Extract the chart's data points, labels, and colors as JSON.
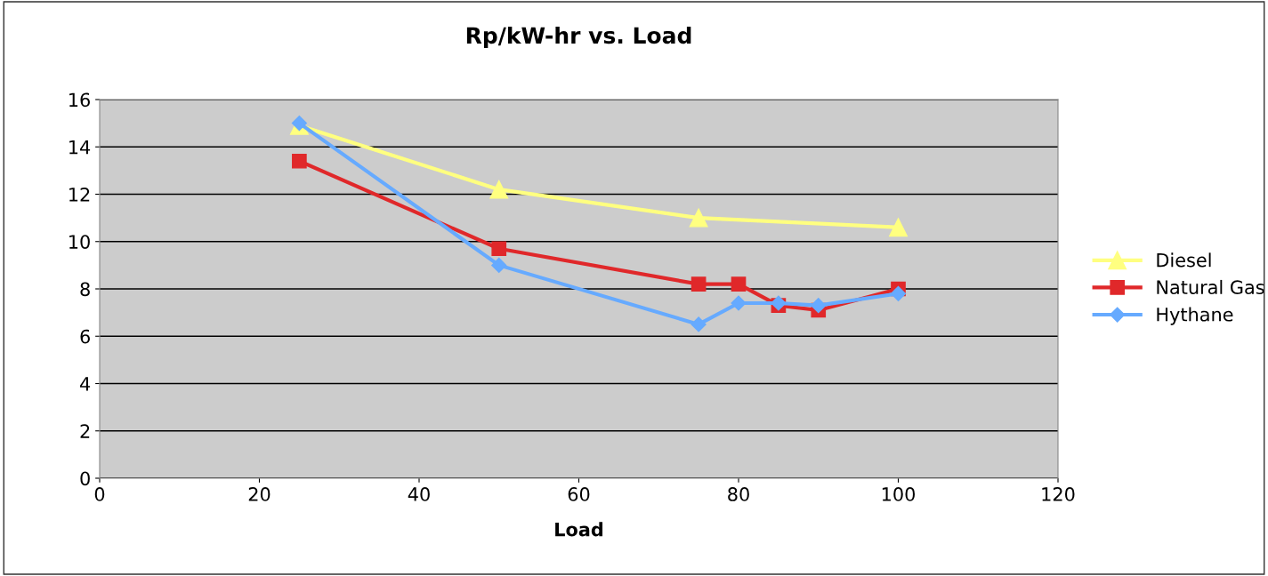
{
  "chart_data": {
    "type": "line",
    "title": "Rp/kW-hr vs. Load",
    "xlabel": "Load",
    "xlim": [
      0,
      120
    ],
    "xticks": [
      0,
      20,
      40,
      60,
      80,
      100,
      120
    ],
    "ylim": [
      0,
      16
    ],
    "yticks": [
      0,
      2,
      4,
      6,
      8,
      10,
      12,
      14,
      16
    ],
    "grid": "y",
    "legend": "right",
    "line_style": "solid",
    "series": [
      {
        "name": "Diesel",
        "color": "#ffff80",
        "marker": "triangle",
        "x": [
          25,
          50,
          75,
          100
        ],
        "values": [
          14.9,
          12.2,
          11.0,
          10.6
        ]
      },
      {
        "name": "Natural Gas",
        "color": "#e0282a",
        "marker": "square",
        "x": [
          25,
          50,
          75,
          80,
          85,
          90,
          100
        ],
        "values": [
          13.4,
          9.7,
          8.2,
          8.2,
          7.3,
          7.1,
          8.0
        ]
      },
      {
        "name": "Hythane",
        "color": "#66aaff",
        "marker": "diamond",
        "x": [
          25,
          50,
          75,
          80,
          85,
          90,
          100
        ],
        "values": [
          15.0,
          9.0,
          6.5,
          7.4,
          7.4,
          7.3,
          7.8
        ]
      }
    ]
  }
}
